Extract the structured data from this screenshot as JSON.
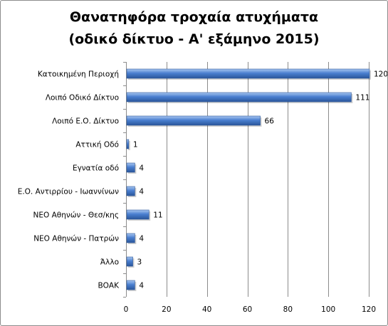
{
  "chart_data": {
    "type": "bar",
    "orientation": "horizontal",
    "title": "Θανατηφόρα τροχαία ατυχήματα",
    "subtitle": "(οδικό δίκτυο - Α' εξάμηνο 2015)",
    "categories": [
      "Κατοικημένη Περιοχή",
      "Λοιπό Οδικό Δίκτυο",
      "Λοιπό Ε.Ο. Δίκτυο",
      "Αττική Οδό",
      "Εγνατία οδό",
      "Ε.Ο. Αντιρρίου - Ιωαννίνων",
      "ΝΕΟ Αθηνών - Θεσ/κης",
      "ΝΕΟ Αθηνών - Πατρών",
      "Άλλο",
      "ΒΟΑΚ"
    ],
    "values": [
      120,
      111,
      66,
      1,
      4,
      4,
      11,
      4,
      3,
      4
    ],
    "xlim": [
      0,
      120
    ],
    "xticks": [
      0,
      20,
      40,
      60,
      80,
      100,
      120
    ],
    "grid": "vertical",
    "legend": "none",
    "bar_color": "#4a7fd0",
    "bar_dark": "#2a569a",
    "bar_light": "#a9c6f0",
    "grid_color": "#8c8c8c"
  }
}
